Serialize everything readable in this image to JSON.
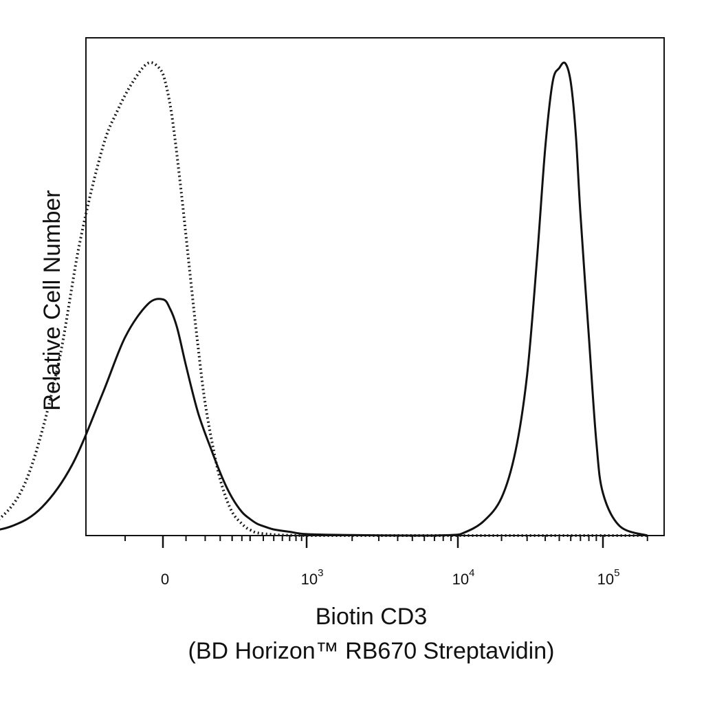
{
  "chart_data": {
    "type": "line",
    "title": "",
    "xlabel": "Biotin CD3",
    "xlabel_line2": "(BD Horizon™ RB670  Streptavidin)",
    "ylabel": "Relative Cell Number",
    "xscale": "biexponential",
    "xlim": [
      -300,
      200000
    ],
    "ylim": [
      0,
      100
    ],
    "grid": false,
    "legend": "none",
    "x_ticks": [
      {
        "value": 0,
        "base": "0",
        "exp": ""
      },
      {
        "value": 1000,
        "base": "10",
        "exp": "3"
      },
      {
        "value": 10000,
        "base": "10",
        "exp": "4"
      },
      {
        "value": 100000,
        "base": "10",
        "exp": "5"
      }
    ],
    "series": [
      {
        "style": "dotted",
        "color": "#1a1a1a",
        "x": [
          -300,
          -260,
          -220,
          -180,
          -140,
          -110,
          -80,
          -60,
          -40,
          -20,
          -5,
          5,
          20,
          40,
          60,
          80,
          100,
          130,
          160,
          200,
          250,
          300,
          400,
          1000,
          10000,
          100000,
          200000
        ],
        "y": [
          0,
          0.5,
          3,
          12,
          35,
          62,
          82,
          90,
          96,
          100,
          99,
          96,
          88,
          72,
          55,
          40,
          28,
          17,
          10,
          5,
          2.5,
          1.2,
          0.4,
          0,
          0,
          0,
          0
        ]
      },
      {
        "style": "solid",
        "color": "#111111",
        "x": [
          -300,
          -250,
          -200,
          -160,
          -120,
          -80,
          -50,
          -20,
          0,
          15,
          30,
          50,
          80,
          120,
          160,
          200,
          250,
          300,
          350,
          400,
          500,
          700,
          1000,
          2000,
          5000,
          9000,
          11000,
          15000,
          20000,
          25000,
          30000,
          35000,
          40000,
          45000,
          50000,
          55000,
          60000,
          65000,
          70000,
          80000,
          90000,
          100000,
          130000,
          200000
        ],
        "y": [
          0,
          0.5,
          2,
          6,
          15,
          30,
          42,
          49,
          50,
          48,
          44,
          36,
          26,
          18,
          12,
          8,
          5,
          3.5,
          2.5,
          2,
          1.3,
          0.8,
          0.3,
          0.1,
          0,
          0.1,
          0.6,
          3,
          8,
          18,
          34,
          58,
          82,
          96,
          99,
          100,
          96,
          85,
          68,
          42,
          20,
          9,
          2,
          0
        ]
      }
    ]
  }
}
